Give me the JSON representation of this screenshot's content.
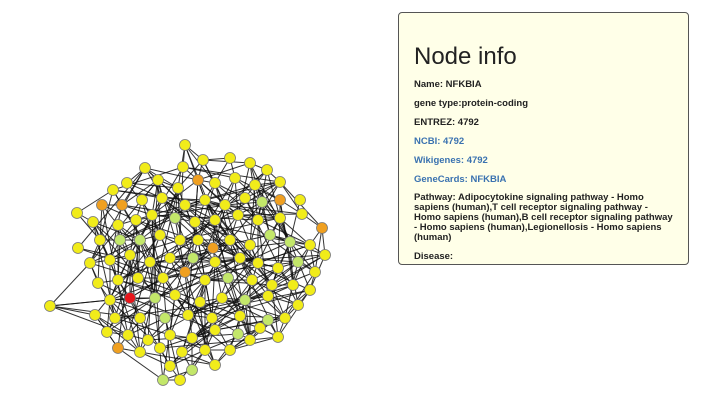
{
  "network": {
    "highlight_color": "#e8161b",
    "node_colors": {
      "yellow": "#f1ec1a",
      "light_green": "#c3e76a",
      "orange": "#f0a020",
      "red": "#e8161b"
    }
  },
  "node_info": {
    "title": "Node info",
    "name_line": "Name: NFKBIA",
    "gene_type_line": "gene type:protein-coding",
    "entrez_line": "ENTREZ: 4792",
    "ncbi_link": "NCBI: 4792",
    "wikigenes_link": "Wikigenes: 4792",
    "genecards_link": "GeneCards: NFKBIA",
    "pathway_line": "Pathway: Adipocytokine signaling pathway - Homo sapiens (human),T cell receptor signaling pathway - Homo sapiens (human),B cell receptor signaling pathway - Homo sapiens (human),Legionellosis - Homo sapiens (human)",
    "disease_line": "Disease:"
  }
}
